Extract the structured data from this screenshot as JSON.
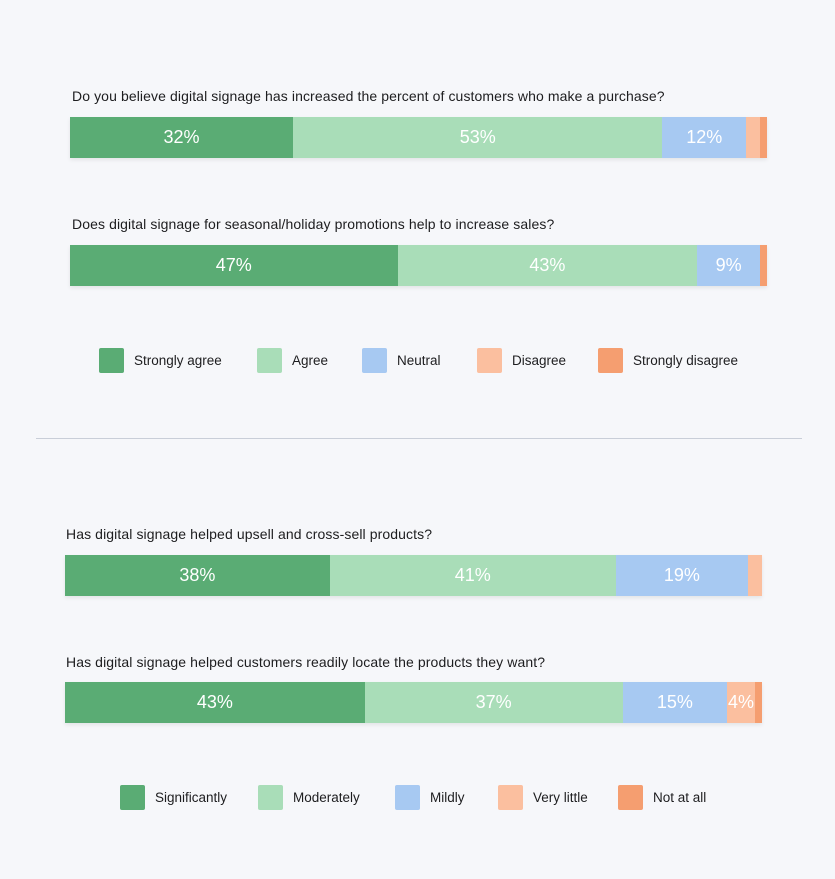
{
  "colors": {
    "dark_green": "#5aac74",
    "light_green": "#a9ddb8",
    "blue": "#a7c9f2",
    "peach": "#fbbf9f",
    "orange": "#f59e70"
  },
  "chart_data": [
    {
      "type": "bar",
      "stacked": true,
      "orientation": "horizontal",
      "legend_position": "bottom",
      "categories": [
        "Do you believe digital signage has increased the percent of customers who make a purchase?",
        "Does digital signage for seasonal/holiday promotions help to increase sales?"
      ],
      "series": [
        {
          "name": "Strongly agree",
          "values": [
            32,
            47
          ],
          "labels": [
            "32%",
            "47%"
          ],
          "color": "#5aac74"
        },
        {
          "name": "Agree",
          "values": [
            53,
            43
          ],
          "labels": [
            "53%",
            "43%"
          ],
          "color": "#a9ddb8"
        },
        {
          "name": "Neutral",
          "values": [
            12,
            9
          ],
          "labels": [
            "12%",
            "9%"
          ],
          "color": "#a7c9f2"
        },
        {
          "name": "Disagree",
          "values": [
            2,
            0
          ],
          "labels": [
            "",
            ""
          ],
          "color": "#fbbf9f"
        },
        {
          "name": "Strongly disagree",
          "values": [
            1,
            1
          ],
          "labels": [
            "",
            ""
          ],
          "color": "#f59e70"
        }
      ]
    },
    {
      "type": "bar",
      "stacked": true,
      "orientation": "horizontal",
      "legend_position": "bottom",
      "categories": [
        "Has digital signage helped upsell and cross-sell products?",
        "Has digital signage helped customers readily locate the products they want?"
      ],
      "series": [
        {
          "name": "Significantly",
          "values": [
            38,
            43
          ],
          "labels": [
            "38%",
            "43%"
          ],
          "color": "#5aac74"
        },
        {
          "name": "Moderately",
          "values": [
            41,
            37
          ],
          "labels": [
            "41%",
            "37%"
          ],
          "color": "#a9ddb8"
        },
        {
          "name": "Mildly",
          "values": [
            19,
            15
          ],
          "labels": [
            "19%",
            "15%"
          ],
          "color": "#a7c9f2"
        },
        {
          "name": "Very little",
          "values": [
            2,
            4
          ],
          "labels": [
            "",
            "4%"
          ],
          "color": "#fbbf9f"
        },
        {
          "name": "Not at all",
          "values": [
            0,
            1
          ],
          "labels": [
            "",
            ""
          ],
          "color": "#f59e70"
        }
      ]
    }
  ]
}
